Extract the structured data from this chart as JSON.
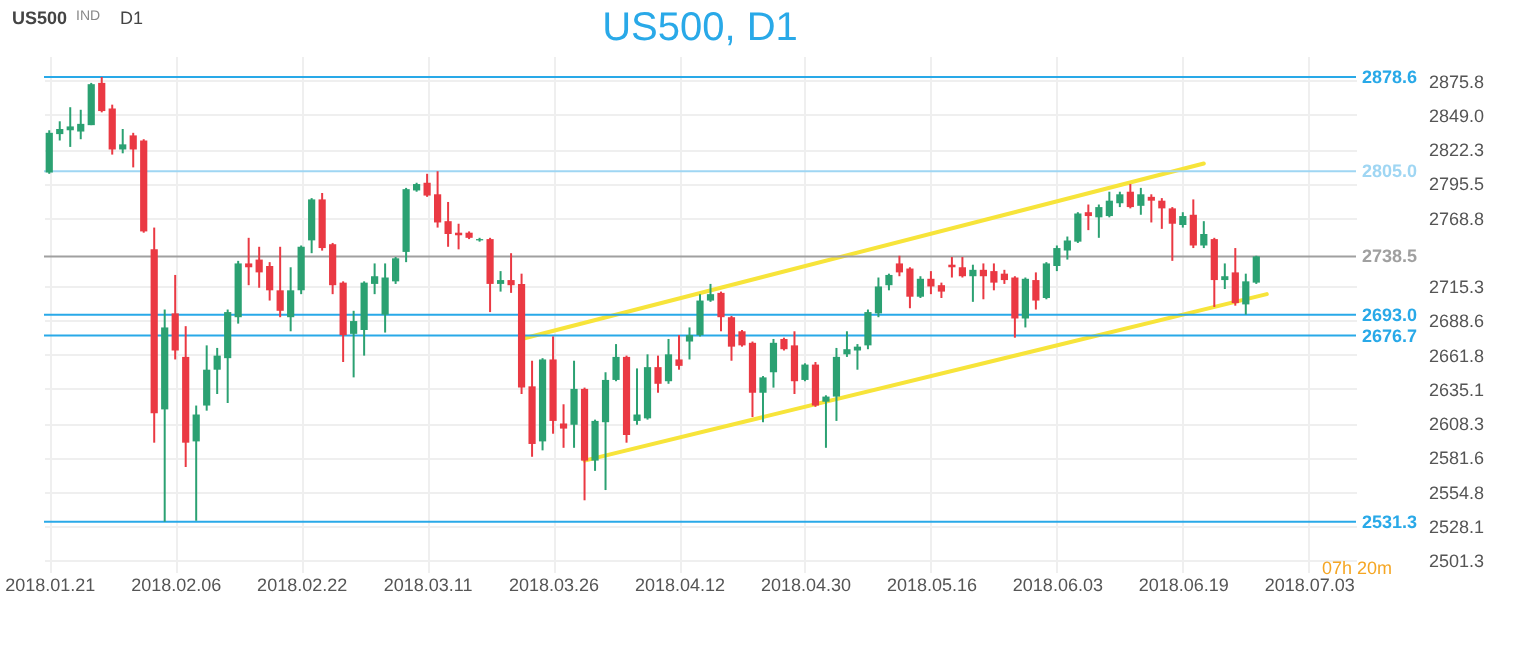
{
  "chart_data": {
    "type": "candlestick",
    "title": "US500, D1",
    "categories": [
      "2018.01.21",
      null,
      null,
      null,
      null,
      null,
      null,
      null,
      null,
      null,
      null,
      null,
      "2018.02.06",
      null,
      null,
      null,
      null,
      null,
      null,
      null,
      null,
      null,
      null,
      null,
      "2018.02.22",
      null,
      null,
      null,
      null,
      null,
      null,
      null,
      null,
      null,
      null,
      null,
      "2018.03.11",
      null,
      null,
      null,
      null,
      null,
      null,
      null,
      null,
      null,
      null,
      null,
      "2018.03.26",
      null,
      null,
      null,
      null,
      null,
      null,
      null,
      null,
      null,
      null,
      null,
      "2018.04.12",
      null,
      null,
      null,
      null,
      null,
      null,
      null,
      null,
      null,
      null,
      null,
      "2018.04.30",
      null,
      null,
      null,
      null,
      null,
      null,
      null,
      null,
      null,
      null,
      null,
      "2018.05.16",
      null,
      null,
      null,
      null,
      null,
      null,
      null,
      null,
      null,
      null,
      null,
      "2018.06.03",
      null,
      null,
      null,
      null,
      null,
      null,
      null,
      null,
      null,
      null,
      null,
      "2018.06.19",
      null,
      null,
      null,
      null,
      null,
      null,
      null,
      null,
      null,
      null,
      null,
      "2018.07.03",
      null,
      null,
      null,
      null
    ],
    "ohlc": [
      [
        2804,
        2837,
        2803,
        2835
      ],
      [
        2834,
        2844,
        2829,
        2838
      ],
      [
        2837,
        2855,
        2824,
        2840
      ],
      [
        2836,
        2853,
        2830,
        2842
      ],
      [
        2841,
        2874,
        2841,
        2873
      ],
      [
        2874,
        2878.6,
        2851,
        2852
      ],
      [
        2854,
        2857,
        2818,
        2822
      ],
      [
        2822,
        2838,
        2819,
        2826
      ],
      [
        2833,
        2835,
        2808,
        2822
      ],
      [
        2829,
        2830,
        2757,
        2758
      ],
      [
        2744,
        2761,
        2593,
        2616
      ],
      [
        2619,
        2697,
        2531.3,
        2683
      ],
      [
        2694,
        2724,
        2658,
        2665
      ],
      [
        2660,
        2684,
        2574,
        2593
      ],
      [
        2594,
        2622,
        2532,
        2615
      ],
      [
        2622,
        2669,
        2618,
        2650
      ],
      [
        2650,
        2667,
        2631,
        2661
      ],
      [
        2659,
        2697,
        2624,
        2695
      ],
      [
        2691,
        2735,
        2686,
        2733
      ],
      [
        2733,
        2753,
        2716,
        2730
      ],
      [
        2736,
        2746,
        2714,
        2726
      ],
      [
        2731,
        2734,
        2704,
        2712
      ],
      [
        2712,
        2746,
        2691,
        2696
      ],
      [
        2691,
        2730,
        2680,
        2712
      ],
      [
        2712,
        2747,
        2709,
        2746
      ],
      [
        2751,
        2784,
        2741,
        2783
      ],
      [
        2783,
        2788,
        2743,
        2745
      ],
      [
        2748,
        2749,
        2709,
        2716
      ],
      [
        2718,
        2719,
        2656,
        2677
      ],
      [
        2678,
        2696,
        2644,
        2688
      ],
      [
        2681,
        2719,
        2661,
        2718
      ],
      [
        2717,
        2733,
        2709,
        2723
      ],
      [
        2693,
        2733,
        2679,
        2722
      ],
      [
        2719,
        2738,
        2717,
        2737
      ],
      [
        2742,
        2792,
        2734,
        2791
      ],
      [
        2790,
        2796,
        2789,
        2795
      ],
      [
        2796,
        2803,
        2785,
        2786
      ],
      [
        2787,
        2805,
        2761,
        2765
      ],
      [
        2766,
        2781,
        2746,
        2756
      ],
      [
        2757,
        2764,
        2744,
        2755
      ],
      [
        2757,
        2758,
        2752,
        2753
      ],
      [
        2751,
        2753,
        2750,
        2752
      ],
      [
        2752,
        2753,
        2695,
        2717
      ],
      [
        2717,
        2727,
        2711,
        2720
      ],
      [
        2720,
        2741,
        2710,
        2716
      ],
      [
        2717,
        2725,
        2631,
        2636
      ],
      [
        2637,
        2657,
        2582,
        2592
      ],
      [
        2594,
        2659,
        2587,
        2658
      ],
      [
        2658,
        2676,
        2600,
        2610
      ],
      [
        2608,
        2623,
        2589,
        2604
      ],
      [
        2607,
        2657,
        2589,
        2635
      ],
      [
        2635,
        2636,
        2548,
        2579
      ],
      [
        2579,
        2611,
        2571,
        2610
      ],
      [
        2609,
        2648,
        2556,
        2642
      ],
      [
        2642,
        2670,
        2641,
        2660
      ],
      [
        2660,
        2661,
        2593,
        2599
      ],
      [
        2610,
        2651,
        2607,
        2615
      ],
      [
        2612,
        2662,
        2611,
        2652
      ],
      [
        2652,
        2661,
        2632,
        2639
      ],
      [
        2641,
        2674,
        2639,
        2662
      ],
      [
        2658,
        2677,
        2650,
        2653
      ],
      [
        2672,
        2683,
        2658,
        2677
      ],
      [
        2677,
        2709,
        2676,
        2704
      ],
      [
        2704,
        2717,
        2703,
        2709
      ],
      [
        2710,
        2711,
        2680,
        2691
      ],
      [
        2691,
        2692,
        2657,
        2668
      ],
      [
        2680,
        2681,
        2668,
        2669
      ],
      [
        2671,
        2672,
        2613,
        2632
      ],
      [
        2632,
        2645,
        2609,
        2644
      ],
      [
        2648,
        2674,
        2636,
        2671
      ],
      [
        2674,
        2675,
        2665,
        2666
      ],
      [
        2669,
        2680,
        2631,
        2641
      ],
      [
        2642,
        2655,
        2641,
        2654
      ],
      [
        2654,
        2656,
        2621,
        2622
      ],
      [
        2625,
        2630,
        2589,
        2629
      ],
      [
        2629,
        2667,
        2610,
        2660
      ],
      [
        2662,
        2680,
        2660,
        2666
      ],
      [
        2665,
        2670,
        2650,
        2668
      ],
      [
        2669,
        2697,
        2666,
        2695
      ],
      [
        2694,
        2722,
        2691,
        2715
      ],
      [
        2716,
        2725,
        2712,
        2724
      ],
      [
        2733,
        2739,
        2723,
        2726
      ],
      [
        2729,
        2730,
        2698,
        2707
      ],
      [
        2707,
        2723,
        2706,
        2721
      ],
      [
        2721,
        2727,
        2709,
        2715
      ],
      [
        2716,
        2718,
        2706,
        2711
      ],
      [
        2732,
        2738,
        2722,
        2730
      ],
      [
        2730,
        2738,
        2722,
        2723
      ],
      [
        2723,
        2732,
        2703,
        2728
      ],
      [
        2728,
        2733,
        2705,
        2723
      ],
      [
        2727,
        2733,
        2712,
        2718
      ],
      [
        2725,
        2728,
        2717,
        2720
      ],
      [
        2722,
        2723,
        2675,
        2690
      ],
      [
        2690,
        2722,
        2683,
        2721
      ],
      [
        2720,
        2726,
        2697,
        2704
      ],
      [
        2706,
        2734,
        2705,
        2733
      ],
      [
        2731,
        2747,
        2727,
        2745
      ],
      [
        2743,
        2754,
        2736,
        2751
      ],
      [
        2750,
        2773,
        2749,
        2772
      ],
      [
        2773,
        2779,
        2759,
        2770
      ],
      [
        2769,
        2779,
        2753,
        2777
      ],
      [
        2770,
        2789,
        2769,
        2782
      ],
      [
        2780,
        2789,
        2777,
        2787
      ],
      [
        2789,
        2795,
        2776,
        2777
      ],
      [
        2778,
        2792,
        2771,
        2787
      ],
      [
        2785,
        2787,
        2765,
        2782
      ],
      [
        2782,
        2784,
        2760,
        2776
      ],
      [
        2776,
        2777,
        2735,
        2764
      ],
      [
        2763,
        2773,
        2761,
        2770
      ],
      [
        2771,
        2783,
        2745,
        2747
      ],
      [
        2747,
        2766,
        2745,
        2756
      ],
      [
        2752,
        2753,
        2699,
        2720
      ],
      [
        2720,
        2733,
        2713,
        2723
      ],
      [
        2726,
        2745,
        2700,
        2702
      ],
      [
        2701,
        2725,
        2693,
        2719
      ],
      [
        2718,
        2739,
        2717,
        2738.5
      ],
      null,
      null,
      null,
      null,
      null,
      null,
      null,
      null,
      null
    ],
    "colors": [
      "#2ba172",
      "#2ba172",
      "#2ba172",
      "#2ba172",
      "#2ba172",
      "#ea3943",
      "#ea3943",
      "#2ba172",
      "#ea3943",
      "#ea3943",
      "#ea3943",
      "#2ba172",
      "#ea3943",
      "#ea3943",
      "#2ba172",
      "#2ba172",
      "#2ba172",
      "#2ba172",
      "#2ba172",
      "#ea3943",
      "#ea3943",
      "#ea3943",
      "#ea3943",
      "#2ba172",
      "#2ba172",
      "#2ba172",
      "#ea3943",
      "#ea3943",
      "#ea3943",
      "#2ba172",
      "#2ba172",
      "#2ba172",
      "#2ba172",
      "#2ba172",
      "#2ba172",
      "#2ba172",
      "#ea3943",
      "#ea3943",
      "#ea3943",
      "#ea3943",
      "#ea3943",
      "#2ba172",
      "#ea3943",
      "#2ba172",
      "#ea3943",
      "#ea3943",
      "#ea3943",
      "#2ba172",
      "#ea3943",
      "#ea3943",
      "#2ba172",
      "#ea3943",
      "#2ba172",
      "#2ba172",
      "#2ba172",
      "#ea3943",
      "#2ba172",
      "#2ba172",
      "#ea3943",
      "#2ba172",
      "#ea3943",
      "#2ba172",
      "#2ba172",
      "#2ba172",
      "#ea3943",
      "#ea3943",
      "#ea3943",
      "#ea3943",
      "#2ba172",
      "#2ba172",
      "#ea3943",
      "#ea3943",
      "#2ba172",
      "#ea3943",
      "#2ba172",
      "#2ba172",
      "#2ba172",
      "#2ba172",
      "#2ba172",
      "#2ba172",
      "#2ba172",
      "#ea3943",
      "#ea3943",
      "#2ba172",
      "#ea3943",
      "#ea3943",
      "#ea3943",
      "#ea3943",
      "#2ba172",
      "#ea3943",
      "#ea3943",
      "#ea3943",
      "#ea3943",
      "#2ba172",
      "#ea3943",
      "#2ba172",
      "#2ba172",
      "#2ba172",
      "#2ba172",
      "#ea3943",
      "#2ba172",
      "#2ba172",
      "#2ba172",
      "#ea3943",
      "#2ba172",
      "#ea3943",
      "#ea3943",
      "#ea3943",
      "#2ba172",
      "#ea3943",
      "#2ba172",
      "#ea3943",
      "#2ba172",
      "#ea3943",
      "#2ba172",
      "#2ba172",
      null,
      null,
      null,
      null,
      null,
      null,
      null,
      null,
      null
    ],
    "series": [
      {
        "type": "line",
        "color": "#f7e43a",
        "values": [
          null,
          null,
          null,
          null,
          null,
          null,
          null,
          null,
          null,
          null,
          null,
          null,
          null,
          null,
          null,
          null,
          null,
          null,
          null,
          null,
          null,
          null,
          null,
          null,
          null,
          null,
          null,
          null,
          null,
          null,
          null,
          null,
          null,
          null,
          null,
          null,
          null,
          null,
          null,
          null,
          null,
          null,
          null,
          null,
          null,
          2674,
          null,
          null,
          null,
          null,
          null,
          null,
          null,
          null,
          null,
          null,
          null,
          null,
          null,
          null,
          null,
          null,
          null,
          null,
          null,
          null,
          null,
          null,
          null,
          null,
          null,
          null,
          null,
          null,
          null,
          null,
          null,
          null,
          null,
          null,
          null,
          null,
          null,
          null,
          null,
          null,
          null,
          null,
          null,
          null,
          null,
          null,
          null,
          null,
          null,
          null,
          null,
          null,
          null,
          null,
          null,
          null,
          null,
          null,
          null,
          null,
          null,
          null,
          null,
          null,
          2811,
          null,
          null,
          null,
          null,
          null,
          null,
          null,
          null,
          null,
          null,
          null,
          null,
          null,
          null
        ]
      },
      {
        "type": "line",
        "color": "#f7e43a",
        "values": [
          null,
          null,
          null,
          null,
          null,
          null,
          null,
          null,
          null,
          null,
          null,
          null,
          null,
          null,
          null,
          null,
          null,
          null,
          null,
          null,
          null,
          null,
          null,
          null,
          null,
          null,
          null,
          null,
          null,
          null,
          null,
          null,
          null,
          null,
          null,
          null,
          null,
          null,
          null,
          null,
          null,
          null,
          null,
          null,
          null,
          null,
          null,
          null,
          null,
          null,
          null,
          2579,
          null,
          null,
          null,
          null,
          null,
          null,
          null,
          null,
          null,
          null,
          null,
          null,
          null,
          null,
          null,
          null,
          null,
          null,
          null,
          null,
          null,
          null,
          null,
          null,
          null,
          null,
          null,
          null,
          null,
          null,
          null,
          null,
          null,
          null,
          null,
          null,
          null,
          null,
          null,
          null,
          null,
          null,
          null,
          null,
          null,
          null,
          null,
          null,
          null,
          null,
          null,
          null,
          null,
          null,
          null,
          null,
          null,
          null,
          null,
          null,
          null,
          null,
          null,
          null,
          2709,
          null,
          null,
          null,
          null,
          null,
          null,
          null,
          null
        ]
      }
    ],
    "ylim": [
      2492,
      2895
    ],
    "yticks": [
      2501.3,
      2528.1,
      2554.8,
      2581.6,
      2608.3,
      2635.1,
      2661.8,
      2688.6,
      2715.3,
      2768.8,
      2795.5,
      2822.3,
      {
        "value": 2849,
        "label": "2849.0"
      },
      2875.8
    ],
    "ref_lines": [
      {
        "axis": "y",
        "value": 2878.6,
        "label": "2878.6",
        "color": "#29a9e8"
      },
      {
        "axis": "y",
        "value": 2805.0,
        "label": "2805.0",
        "color": "#9fd6f3"
      },
      {
        "axis": "y",
        "value": 2738.5,
        "label": "2738.5",
        "color": "#a0a0a0"
      },
      {
        "axis": "y",
        "value": 2693.0,
        "label": "2693.0",
        "color": "#29a9e8"
      },
      {
        "axis": "y",
        "value": 2676.7,
        "label": "2676.7",
        "color": "#29a9e8"
      },
      {
        "axis": "y",
        "value": 2531.3,
        "label": "2531.3",
        "color": "#29a9e8"
      }
    ],
    "grid": true,
    "annotations": [
      "US500",
      "IND",
      "D1",
      "07h 20m"
    ]
  }
}
